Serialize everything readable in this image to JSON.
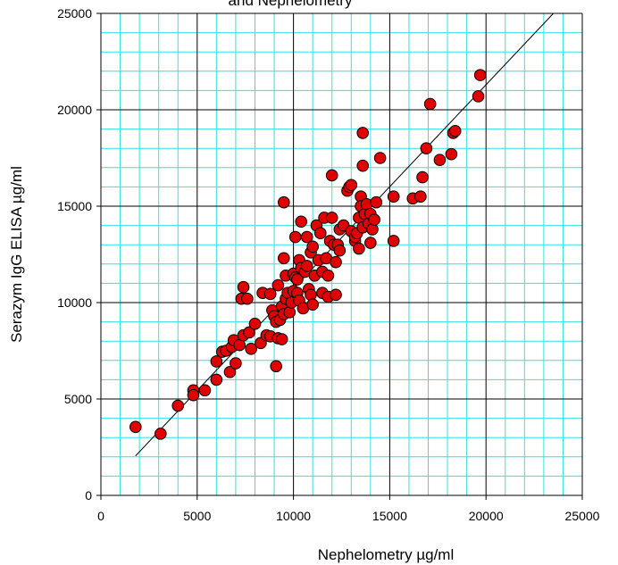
{
  "chart_data": {
    "type": "scatter",
    "title": "and Nephelometry",
    "xlabel": "Nephelometry µg/ml",
    "ylabel": "Serazym IgG ELISA µg/ml",
    "xlim": [
      0,
      25000
    ],
    "ylim": [
      0,
      25000
    ],
    "x_ticks": [
      0,
      5000,
      10000,
      15000,
      20000,
      25000
    ],
    "y_ticks": [
      0,
      5000,
      10000,
      15000,
      20000,
      25000
    ],
    "x_tick_labels": [
      "0",
      "5000",
      "10000",
      "15000",
      "20000",
      "25000"
    ],
    "y_tick_labels": [
      "0",
      "5000",
      "10000",
      "15000",
      "20000",
      "25000"
    ],
    "minor_step": 1000,
    "grid": true,
    "colors": {
      "minor_grid": "#33e0e0",
      "major_grid": "#000000",
      "marker_fill": "#e00000",
      "marker_stroke": "#000000",
      "trendline": "#000000"
    },
    "trendline": {
      "x": [
        1800,
        23500
      ],
      "y": [
        2050,
        25000
      ]
    },
    "points": [
      [
        1800,
        3550
      ],
      [
        3100,
        3200
      ],
      [
        4000,
        4650
      ],
      [
        4800,
        5450
      ],
      [
        4800,
        5200
      ],
      [
        5400,
        5450
      ],
      [
        6000,
        6000
      ],
      [
        6000,
        6950
      ],
      [
        6300,
        7450
      ],
      [
        6500,
        7500
      ],
      [
        6700,
        6400
      ],
      [
        6800,
        7700
      ],
      [
        6900,
        8050
      ],
      [
        7000,
        6850
      ],
      [
        7200,
        7800
      ],
      [
        7300,
        10200
      ],
      [
        7400,
        10800
      ],
      [
        7400,
        8300
      ],
      [
        7600,
        10200
      ],
      [
        7700,
        8450
      ],
      [
        7800,
        7600
      ],
      [
        8000,
        8900
      ],
      [
        8300,
        7900
      ],
      [
        8400,
        10500
      ],
      [
        8600,
        8300
      ],
      [
        8800,
        8250
      ],
      [
        8800,
        10450
      ],
      [
        8900,
        9600
      ],
      [
        9000,
        9300
      ],
      [
        9100,
        9000
      ],
      [
        9100,
        6700
      ],
      [
        9200,
        8150
      ],
      [
        9200,
        10900
      ],
      [
        9300,
        9100
      ],
      [
        9400,
        8100
      ],
      [
        9400,
        9800
      ],
      [
        9500,
        15200
      ],
      [
        9500,
        12300
      ],
      [
        9500,
        9400
      ],
      [
        9600,
        10200
      ],
      [
        9600,
        11400
      ],
      [
        9700,
        10500
      ],
      [
        9800,
        9500
      ],
      [
        9900,
        10000
      ],
      [
        10000,
        10600
      ],
      [
        10000,
        11500
      ],
      [
        10100,
        11300
      ],
      [
        10100,
        13400
      ],
      [
        10200,
        11200
      ],
      [
        10200,
        10500
      ],
      [
        10300,
        10100
      ],
      [
        10300,
        12200
      ],
      [
        10400,
        11800
      ],
      [
        10400,
        14200
      ],
      [
        10500,
        9700
      ],
      [
        10600,
        11600
      ],
      [
        10700,
        13400
      ],
      [
        10700,
        11900
      ],
      [
        10800,
        10700
      ],
      [
        10900,
        10400
      ],
      [
        10900,
        12600
      ],
      [
        11000,
        9900
      ],
      [
        11000,
        12900
      ],
      [
        11100,
        11400
      ],
      [
        11200,
        14000
      ],
      [
        11300,
        12200
      ],
      [
        11400,
        13600
      ],
      [
        11500,
        11600
      ],
      [
        11500,
        10500
      ],
      [
        11600,
        14400
      ],
      [
        11700,
        12300
      ],
      [
        11800,
        11400
      ],
      [
        11800,
        10300
      ],
      [
        11900,
        13200
      ],
      [
        12000,
        14400
      ],
      [
        12000,
        16600
      ],
      [
        12100,
        13000
      ],
      [
        12200,
        10400
      ],
      [
        12200,
        12100
      ],
      [
        12300,
        13000
      ],
      [
        12400,
        12700
      ],
      [
        12400,
        13800
      ],
      [
        12600,
        14000
      ],
      [
        12800,
        15800
      ],
      [
        12900,
        16000
      ],
      [
        13000,
        16100
      ],
      [
        13000,
        13700
      ],
      [
        13200,
        13200
      ],
      [
        13200,
        13400
      ],
      [
        13300,
        13600
      ],
      [
        13400,
        12800
      ],
      [
        13400,
        14400
      ],
      [
        13500,
        15500
      ],
      [
        13500,
        15000
      ],
      [
        13600,
        18800
      ],
      [
        13600,
        17100
      ],
      [
        13600,
        13900
      ],
      [
        13700,
        14600
      ],
      [
        13800,
        15100
      ],
      [
        13900,
        14100
      ],
      [
        14000,
        14600
      ],
      [
        14000,
        13100
      ],
      [
        14100,
        13800
      ],
      [
        14200,
        14300
      ],
      [
        14300,
        15200
      ],
      [
        14500,
        17500
      ],
      [
        15200,
        15500
      ],
      [
        15200,
        13200
      ],
      [
        16200,
        15400
      ],
      [
        16600,
        15500
      ],
      [
        16700,
        16500
      ],
      [
        16900,
        18000
      ],
      [
        17100,
        20300
      ],
      [
        17600,
        17400
      ],
      [
        18200,
        17700
      ],
      [
        18300,
        18800
      ],
      [
        18400,
        18900
      ],
      [
        19600,
        20700
      ],
      [
        19700,
        21800
      ]
    ]
  }
}
